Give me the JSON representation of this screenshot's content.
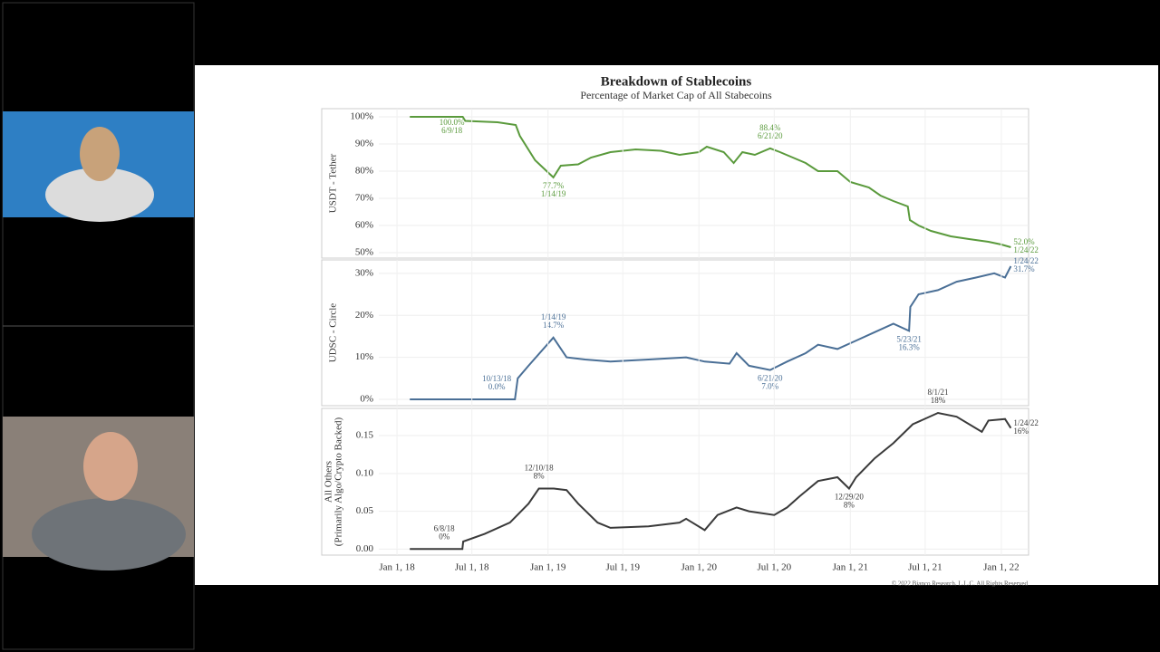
{
  "slide": {
    "title": "Breakdown of Stablecoins",
    "subtitle": "Percentage of Market Cap of All Stabecoins",
    "copyright": "© 2022 Bianco Research, L.L.C. All Rights Reserved"
  },
  "chart_data": [
    {
      "type": "line",
      "ylabel": [
        "USDT - Tether"
      ],
      "color": "#5a9a3c",
      "xlim": [
        "2017-11-18",
        "2022-03-08"
      ],
      "ylim": [
        48,
        103
      ],
      "yticks": [
        {
          "value": 50,
          "label": "50%"
        },
        {
          "value": 60,
          "label": "60%"
        },
        {
          "value": 70,
          "label": "70%"
        },
        {
          "value": 80,
          "label": "80%"
        },
        {
          "value": 90,
          "label": "90%"
        },
        {
          "value": 100,
          "label": "100%"
        }
      ],
      "x": [
        "2018-02-01",
        "2018-06-09",
        "2018-06-15",
        "2018-09-01",
        "2018-10-15",
        "2018-10-25",
        "2018-12-01",
        "2019-01-14",
        "2019-02-01",
        "2019-03-15",
        "2019-04-15",
        "2019-06-01",
        "2019-08-01",
        "2019-10-01",
        "2019-11-15",
        "2020-01-01",
        "2020-01-20",
        "2020-03-01",
        "2020-03-25",
        "2020-04-15",
        "2020-05-15",
        "2020-06-21",
        "2020-07-15",
        "2020-08-15",
        "2020-09-15",
        "2020-10-15",
        "2020-12-01",
        "2021-01-01",
        "2021-02-15",
        "2021-03-15",
        "2021-04-15",
        "2021-05-20",
        "2021-05-25",
        "2021-06-15",
        "2021-07-15",
        "2021-09-01",
        "2021-10-15",
        "2021-12-01",
        "2022-01-01",
        "2022-01-24"
      ],
      "values": [
        100,
        100,
        98.5,
        98,
        97,
        93,
        84,
        77.7,
        82,
        82.5,
        85,
        87,
        88,
        87.5,
        86,
        87,
        89,
        87,
        83,
        87,
        86,
        88.4,
        87,
        85,
        83,
        80,
        80,
        76,
        74,
        71,
        69,
        67,
        62,
        60,
        58,
        56,
        55,
        54,
        53,
        52.0
      ],
      "annotations": [
        {
          "x": "2018-06-09",
          "y": 100,
          "texts": [
            "100.0%",
            "6/9/18"
          ]
        },
        {
          "x": "2019-01-14",
          "y": 77.7,
          "texts": [
            "77.7%",
            "1/14/19"
          ]
        },
        {
          "x": "2020-06-21",
          "y": 88.4,
          "texts": [
            "88.4%",
            "6/21/20"
          ]
        },
        {
          "x": "2022-01-24",
          "y": 52.0,
          "texts": [
            "52.0%",
            "1/24/22"
          ]
        }
      ]
    },
    {
      "type": "line",
      "ylabel": [
        "UDSC - Circle"
      ],
      "color": "#4a6f96",
      "xlim": [
        "2017-11-18",
        "2022-03-08"
      ],
      "ylim": [
        -1.5,
        33.2
      ],
      "yticks": [
        {
          "value": 0,
          "label": "0%"
        },
        {
          "value": 10,
          "label": "10%"
        },
        {
          "value": 20,
          "label": "20%"
        },
        {
          "value": 30,
          "label": "30%"
        }
      ],
      "x": [
        "2018-02-01",
        "2018-10-13",
        "2018-10-20",
        "2018-11-15",
        "2019-01-14",
        "2019-02-15",
        "2019-04-01",
        "2019-06-01",
        "2019-09-01",
        "2019-12-01",
        "2020-01-15",
        "2020-03-15",
        "2020-04-01",
        "2020-05-01",
        "2020-06-21",
        "2020-08-01",
        "2020-09-15",
        "2020-10-15",
        "2020-12-01",
        "2021-01-15",
        "2021-03-01",
        "2021-04-15",
        "2021-05-23",
        "2021-05-26",
        "2021-06-15",
        "2021-08-01",
        "2021-09-15",
        "2021-11-01",
        "2021-12-15",
        "2022-01-10",
        "2022-01-24"
      ],
      "values": [
        0,
        0,
        5,
        8,
        14.7,
        10,
        9.5,
        9,
        9.5,
        10,
        9,
        8.5,
        11,
        8,
        7.0,
        9,
        11,
        13,
        12,
        14,
        16,
        18,
        16.3,
        22,
        25,
        26,
        28,
        29,
        30,
        29,
        31.7
      ],
      "annotations": [
        {
          "x": "2018-10-13",
          "y": 0,
          "texts": [
            "10/13/18",
            "0.0%"
          ]
        },
        {
          "x": "2019-01-14",
          "y": 14.7,
          "texts": [
            "1/14/19",
            "14.7%"
          ]
        },
        {
          "x": "2020-06-21",
          "y": 7.0,
          "texts": [
            "6/21/20",
            "7.0%"
          ]
        },
        {
          "x": "2021-05-23",
          "y": 16.3,
          "texts": [
            "5/23/21",
            "16.3%"
          ]
        },
        {
          "x": "2022-01-24",
          "y": 31.7,
          "texts": [
            "1/24/22",
            "31.7%"
          ]
        }
      ]
    },
    {
      "type": "line",
      "ylabel": [
        "All Others",
        "(Primarily Algo/Crypto Backed)"
      ],
      "color": "#3a3a3a",
      "xlim": [
        "2017-11-18",
        "2022-03-08"
      ],
      "ylim": [
        -0.008,
        0.186
      ],
      "yticks": [
        {
          "value": 0,
          "label": "0.00"
        },
        0.05,
        {
          "value": 0.1,
          "label": "0.10"
        },
        0.15
      ],
      "xticks": [
        {
          "value": "2018-01-01",
          "label": "Jan 1, 18"
        },
        {
          "value": "2018-07-01",
          "label": "Jul 1, 18"
        },
        {
          "value": "2019-01-01",
          "label": "Jan 1, 19"
        },
        {
          "value": "2019-07-01",
          "label": "Jul 1, 19"
        },
        {
          "value": "2020-01-01",
          "label": "Jan 1, 20"
        },
        {
          "value": "2020-07-01",
          "label": "Jul 1, 20"
        },
        {
          "value": "2021-01-01",
          "label": "Jan 1, 21"
        },
        {
          "value": "2021-07-01",
          "label": "Jul 1, 21"
        },
        {
          "value": "2022-01-01",
          "label": "Jan 1, 22"
        }
      ],
      "x": [
        "2018-02-01",
        "2018-06-08",
        "2018-06-10",
        "2018-08-01",
        "2018-10-01",
        "2018-11-15",
        "2018-12-10",
        "2019-01-15",
        "2019-02-15",
        "2019-03-15",
        "2019-05-01",
        "2019-06-01",
        "2019-09-01",
        "2019-11-15",
        "2019-12-01",
        "2020-01-15",
        "2020-02-15",
        "2020-04-01",
        "2020-05-01",
        "2020-07-01",
        "2020-08-01",
        "2020-09-01",
        "2020-10-15",
        "2020-12-01",
        "2020-12-29",
        "2021-01-15",
        "2021-03-01",
        "2021-04-15",
        "2021-06-01",
        "2021-08-01",
        "2021-09-15",
        "2021-11-15",
        "2021-12-01",
        "2022-01-10",
        "2022-01-24"
      ],
      "values": [
        0,
        0,
        0.01,
        0.02,
        0.035,
        0.06,
        0.08,
        0.08,
        0.078,
        0.06,
        0.035,
        0.028,
        0.03,
        0.035,
        0.04,
        0.025,
        0.045,
        0.055,
        0.05,
        0.045,
        0.055,
        0.07,
        0.09,
        0.095,
        0.08,
        0.095,
        0.12,
        0.14,
        0.165,
        0.18,
        0.175,
        0.155,
        0.17,
        0.172,
        0.16
      ],
      "annotations": [
        {
          "x": "2018-06-08",
          "y": 0,
          "texts": [
            "6/8/18",
            "0%"
          ]
        },
        {
          "x": "2018-12-10",
          "y": 0.08,
          "texts": [
            "12/10/18",
            "8%"
          ]
        },
        {
          "x": "2020-12-29",
          "y": 0.08,
          "texts": [
            "12/29/20",
            "8%"
          ]
        },
        {
          "x": "2021-08-01",
          "y": 0.18,
          "texts": [
            "8/1/21",
            "18%"
          ]
        },
        {
          "x": "2022-01-24",
          "y": 0.16,
          "texts": [
            "1/24/22",
            "16%"
          ]
        }
      ]
    }
  ]
}
